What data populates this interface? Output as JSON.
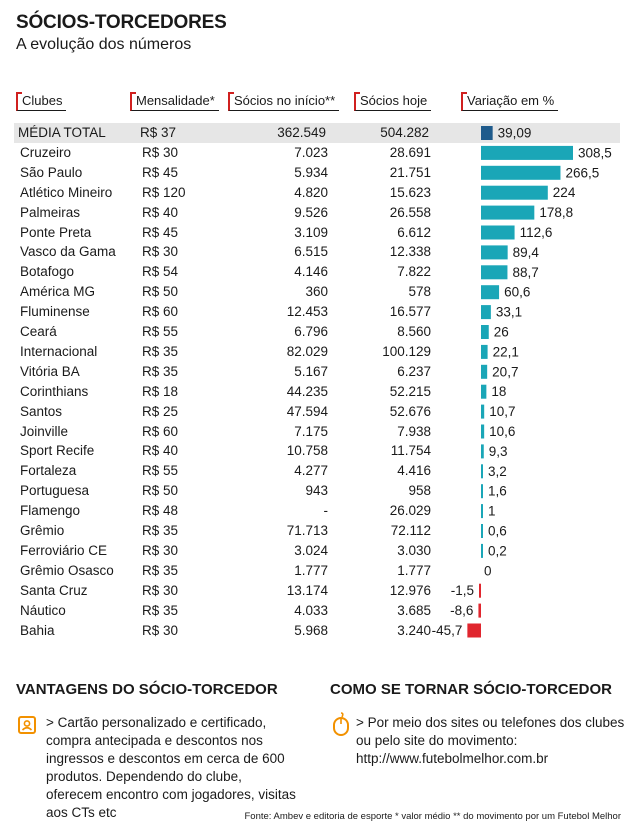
{
  "title": "SÓCIOS-TORCEDORES",
  "subtitle": "A evolução dos números",
  "headers": {
    "club": "Clubes",
    "fee": "Mensalidade*",
    "start": "Sócios no início**",
    "now": "Sócios hoje",
    "variation": "Variação em %"
  },
  "rows": [
    {
      "club": "MÉDIA TOTAL",
      "fee": "R$ 37",
      "start": "362.549",
      "now": "504.282",
      "variation_label": "39,09",
      "variation": 39.09
    },
    {
      "club": "Cruzeiro",
      "fee": "R$ 30",
      "start": "7.023",
      "now": "28.691",
      "variation_label": "308,5",
      "variation": 308.5
    },
    {
      "club": "São Paulo",
      "fee": "R$ 45",
      "start": "5.934",
      "now": "21.751",
      "variation_label": "266,5",
      "variation": 266.5
    },
    {
      "club": "Atlético Mineiro",
      "fee": "R$ 120",
      "start": "4.820",
      "now": "15.623",
      "variation_label": "224",
      "variation": 224
    },
    {
      "club": "Palmeiras",
      "fee": "R$ 40",
      "start": "9.526",
      "now": "26.558",
      "variation_label": "178,8",
      "variation": 178.8
    },
    {
      "club": "Ponte Preta",
      "fee": "R$ 45",
      "start": "3.109",
      "now": "6.612",
      "variation_label": "112,6",
      "variation": 112.6
    },
    {
      "club": "Vasco da Gama",
      "fee": "R$ 30",
      "start": "6.515",
      "now": "12.338",
      "variation_label": "89,4",
      "variation": 89.4
    },
    {
      "club": "Botafogo",
      "fee": "R$ 54",
      "start": "4.146",
      "now": "7.822",
      "variation_label": "88,7",
      "variation": 88.7
    },
    {
      "club": "América MG",
      "fee": "R$ 50",
      "start": "360",
      "now": "578",
      "variation_label": "60,6",
      "variation": 60.6
    },
    {
      "club": "Fluminense",
      "fee": "R$ 60",
      "start": "12.453",
      "now": "16.577",
      "variation_label": "33,1",
      "variation": 33.1
    },
    {
      "club": "Ceará",
      "fee": "R$ 55",
      "start": "6.796",
      "now": "8.560",
      "variation_label": "26",
      "variation": 26
    },
    {
      "club": "Internacional",
      "fee": "R$ 35",
      "start": "82.029",
      "now": "100.129",
      "variation_label": "22,1",
      "variation": 22.1
    },
    {
      "club": "Vitória BA",
      "fee": "R$ 35",
      "start": "5.167",
      "now": "6.237",
      "variation_label": "20,7",
      "variation": 20.7
    },
    {
      "club": "Corinthians",
      "fee": "R$ 18",
      "start": "44.235",
      "now": "52.215",
      "variation_label": "18",
      "variation": 18
    },
    {
      "club": "Santos",
      "fee": "R$ 25",
      "start": "47.594",
      "now": "52.676",
      "variation_label": "10,7",
      "variation": 10.7
    },
    {
      "club": "Joinville",
      "fee": "R$ 60",
      "start": "7.175",
      "now": "7.938",
      "variation_label": "10,6",
      "variation": 10.6
    },
    {
      "club": "Sport Recife",
      "fee": "R$ 40",
      "start": "10.758",
      "now": "11.754",
      "variation_label": "9,3",
      "variation": 9.3
    },
    {
      "club": "Fortaleza",
      "fee": "R$ 55",
      "start": "4.277",
      "now": "4.416",
      "variation_label": "3,2",
      "variation": 3.2
    },
    {
      "club": "Portuguesa",
      "fee": "R$ 50",
      "start": "943",
      "now": "958",
      "variation_label": "1,6",
      "variation": 1.6
    },
    {
      "club": "Flamengo",
      "fee": "R$ 48",
      "start": "-",
      "now": "26.029",
      "variation_label": "1",
      "variation": 1
    },
    {
      "club": "Grêmio",
      "fee": "R$ 35",
      "start": "71.713",
      "now": "72.112",
      "variation_label": "0,6",
      "variation": 0.6
    },
    {
      "club": "Ferroviário CE",
      "fee": "R$ 30",
      "start": "3.024",
      "now": "3.030",
      "variation_label": "0,2",
      "variation": 0.2
    },
    {
      "club": "Grêmio Osasco",
      "fee": "R$ 35",
      "start": "1.777",
      "now": "1.777",
      "variation_label": "0",
      "variation": 0
    },
    {
      "club": "Santa Cruz",
      "fee": "R$ 30",
      "start": "13.174",
      "now": "12.976",
      "variation_label": "-1,5",
      "variation": -1.5
    },
    {
      "club": "Náutico",
      "fee": "R$ 35",
      "start": "4.033",
      "now": "3.685",
      "variation_label": "-8,6",
      "variation": -8.6
    },
    {
      "club": "Bahia",
      "fee": "R$ 30",
      "start": "5.968",
      "now": "3.240",
      "variation_label": "-45,7",
      "variation": -45.7
    }
  ],
  "chart_data": {
    "type": "bar",
    "orientation": "horizontal",
    "title": "Variação em %",
    "categories": [
      "MÉDIA TOTAL",
      "Cruzeiro",
      "São Paulo",
      "Atlético Mineiro",
      "Palmeiras",
      "Ponte Preta",
      "Vasco da Gama",
      "Botafogo",
      "América MG",
      "Fluminense",
      "Ceará",
      "Internacional",
      "Vitória BA",
      "Corinthians",
      "Santos",
      "Joinville",
      "Sport Recife",
      "Fortaleza",
      "Portuguesa",
      "Flamengo",
      "Grêmio",
      "Ferroviário CE",
      "Grêmio Osasco",
      "Santa Cruz",
      "Náutico",
      "Bahia"
    ],
    "values": [
      39.09,
      308.5,
      266.5,
      224,
      178.8,
      112.6,
      89.4,
      88.7,
      60.6,
      33.1,
      26,
      22.1,
      20.7,
      18,
      10.7,
      10.6,
      9.3,
      3.2,
      1.6,
      1,
      0.6,
      0.2,
      0,
      -1.5,
      -8.6,
      -45.7
    ],
    "xlim": [
      -45.7,
      308.5
    ],
    "colors": {
      "positive": "#1aa6b7",
      "negative": "#e0262e",
      "average": "#1f5b8c"
    }
  },
  "sections": {
    "advantages": {
      "title": "VANTAGENS DO SÓCIO-TORCEDOR",
      "text": "> Cartão personalizado e certificado, compra antecipada e descontos nos ingressos e descontos em cerca de 600 produtos. Dependendo do clube, oferecem encontro com jogadores, visitas aos CTs etc"
    },
    "how_to": {
      "title": "COMO SE TORNAR SÓCIO-TORCEDOR",
      "text": "> Por meio dos sites ou telefones dos clubes ou pelo site do movimento: http://www.futebolmelhor.com.br"
    }
  },
  "icons": {
    "advantages": "id-card-icon",
    "how_to": "mouse-icon"
  },
  "accent_color": "#f29100",
  "source": "Fonte: Ambev e editoria de esporte * valor médio ** do movimento por um Futebol Melhor"
}
